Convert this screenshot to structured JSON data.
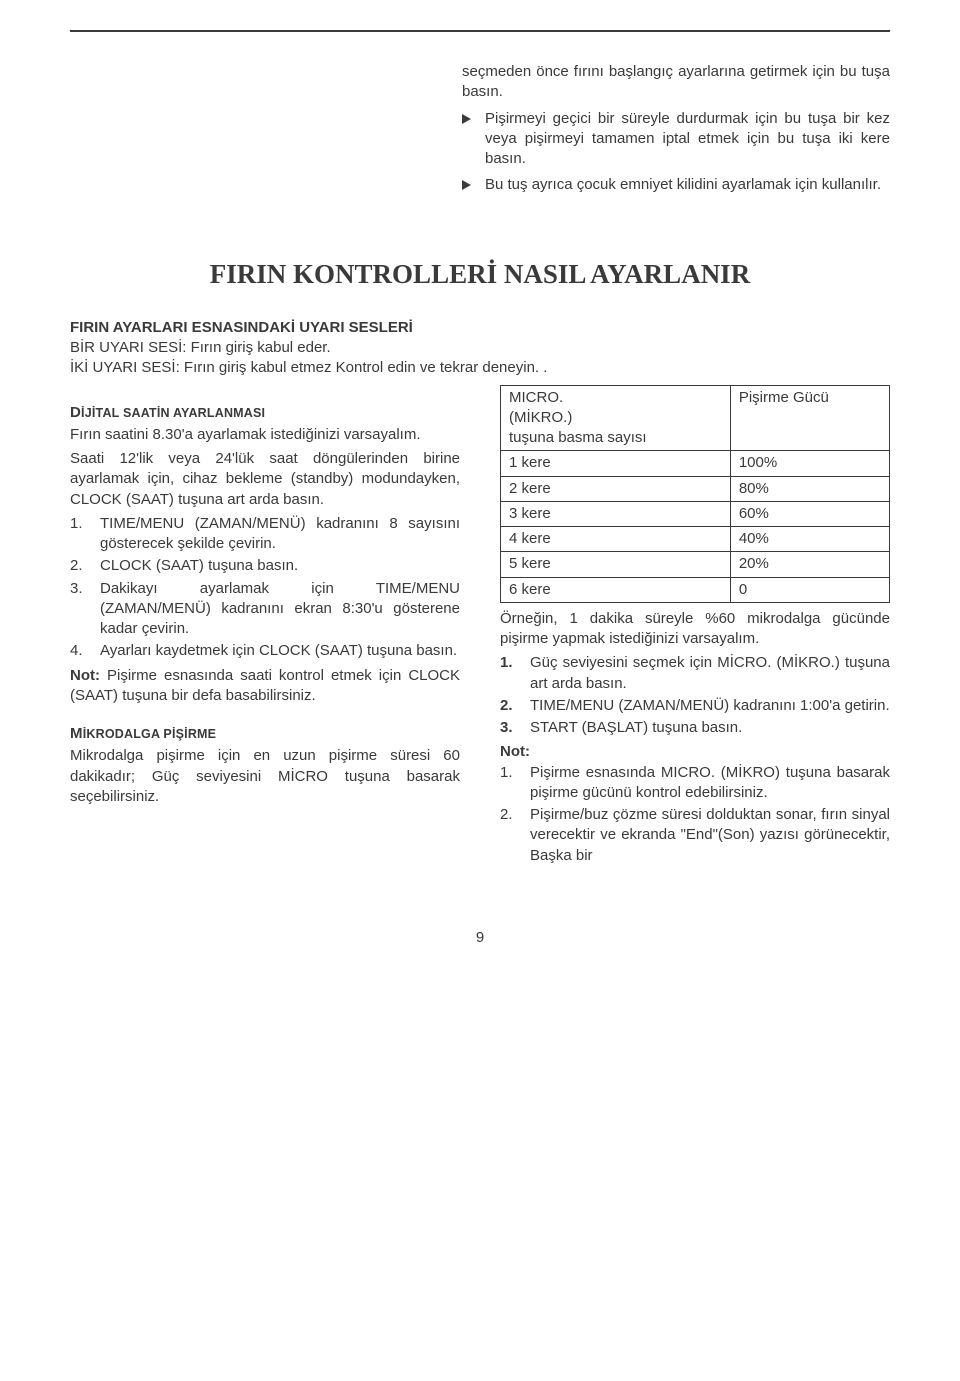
{
  "intro": {
    "lead": "seçmeden önce fırını başlangıç ayarlarına getirmek için bu tuşa basın.",
    "bullets": [
      "Pişirmeyi geçici bir süreyle durdurmak için bu tuşa bir kez veya pişirmeyi tamamen iptal etmek için bu tuşa iki kere basın.",
      "Bu tuş ayrıca çocuk emniyet kilidini ayarlamak için kullanılır."
    ]
  },
  "main_title": "FIRIN KONTROLLERİ NASIL AYARLANIR",
  "uyari": {
    "heading": "FIRIN AYARLARI ESNASINDAKİ UYARI SESLERİ",
    "line1": "BİR UYARI SESİ: Fırın giriş kabul eder.",
    "line2": "İKİ UYARI SESİ: Fırın giriş kabul etmez Kontrol edin ve tekrar deneyin. ."
  },
  "left": {
    "sect1_title_main": "D",
    "sect1_title_rest": "İJİTAL SAATİN AYARLANMASI",
    "p1": "Fırın saatini 8.30'a ayarlamak istediğinizi varsayalım.",
    "p2": "Saati 12'lik  veya 24'lük saat döngülerinden birine ayarlamak için, cihaz bekleme (standby) modundayken, CLOCK (SAAT) tuşuna art arda basın.",
    "steps": [
      "TIME/MENU (ZAMAN/MENÜ) kadranını 8 sayısını gösterecek şekilde çevirin.",
      "CLOCK (SAAT) tuşuna basın.",
      "Dakikayı ayarlamak için TIME/MENU (ZAMAN/MENÜ) kadranını ekran 8:30'u gösterene kadar çevirin.",
      "Ayarları kaydetmek için CLOCK (SAAT) tuşuna basın."
    ],
    "note1_label": "Not:",
    "note1_text": " Pişirme esnasında saati kontrol etmek için CLOCK (SAAT) tuşuna bir defa basabilirsiniz.",
    "sect2_title_main": "M",
    "sect2_title_rest": "İKRODALGA PİŞİRME",
    "p3": "Mikrodalga pişirme için en uzun pişirme süresi 60 dakikadır; Güç seviyesini MİCRO tuşuna basarak seçebilirsiniz."
  },
  "right": {
    "table": {
      "head_left_l1": "MICRO.",
      "head_left_l2": "(MİKRO.)",
      "head_left_l3": "tuşuna basma sayısı",
      "head_right": "Pişirme Gücü",
      "rows": [
        [
          "1 kere",
          "100%"
        ],
        [
          "2 kere",
          "80%"
        ],
        [
          "3 kere",
          "60%"
        ],
        [
          "4 kere",
          "40%"
        ],
        [
          "5 kere",
          "20%"
        ],
        [
          "6 kere",
          "0"
        ]
      ]
    },
    "p1": "Örneğin, 1 dakika süreyle %60 mikrodalga gücünde pişirme yapmak istediğinizi varsayalım.",
    "steps": [
      "Güç seviyesini seçmek için MİCRO. (MİKRO.) tuşuna art arda basın.",
      "TIME/MENU (ZAMAN/MENÜ) kadranını 1:00'a getirin.",
      "START (BAŞLAT) tuşuna basın."
    ],
    "note_label": "Not:",
    "notes": [
      "Pişirme esnasında MICRO. (MİKRO) tuşuna basarak pişirme gücünü kontrol edebilirsiniz.",
      "Pişirme/buz çözme süresi dolduktan sonar, fırın sinyal verecektir ve ekranda \"End\"(Son) yazısı görünecektir, Başka bir"
    ]
  },
  "page_number": "9"
}
